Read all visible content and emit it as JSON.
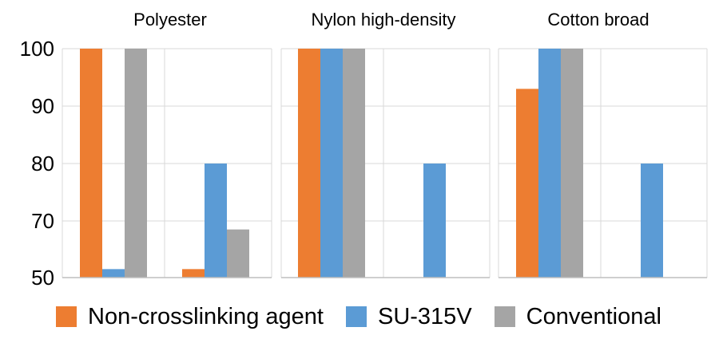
{
  "chart_data": {
    "type": "bar",
    "ylim": [
      50,
      100
    ],
    "yticks": [
      "100",
      "90",
      "80",
      "70",
      "50"
    ],
    "grid": true,
    "legend_position": "bottom",
    "series": [
      {
        "name": "Non-crosslinking agent",
        "color": "#ED7D31"
      },
      {
        "name": "SU-315V",
        "color": "#5B9BD5"
      },
      {
        "name": "Conventional",
        "color": "#A5A5A5"
      }
    ],
    "panels": [
      {
        "title": "Polyester",
        "groups": [
          {
            "values": [
              100,
              53,
              100
            ]
          },
          {
            "values": [
              53,
              80,
              67
            ]
          }
        ]
      },
      {
        "title": "Nylon high-density",
        "groups": [
          {
            "values": [
              100,
              100,
              100
            ]
          },
          {
            "values": [
              null,
              80,
              null
            ]
          }
        ]
      },
      {
        "title": "Cotton broad",
        "groups": [
          {
            "values": [
              93,
              100,
              100
            ]
          },
          {
            "values": [
              null,
              80,
              null
            ]
          }
        ]
      }
    ]
  }
}
